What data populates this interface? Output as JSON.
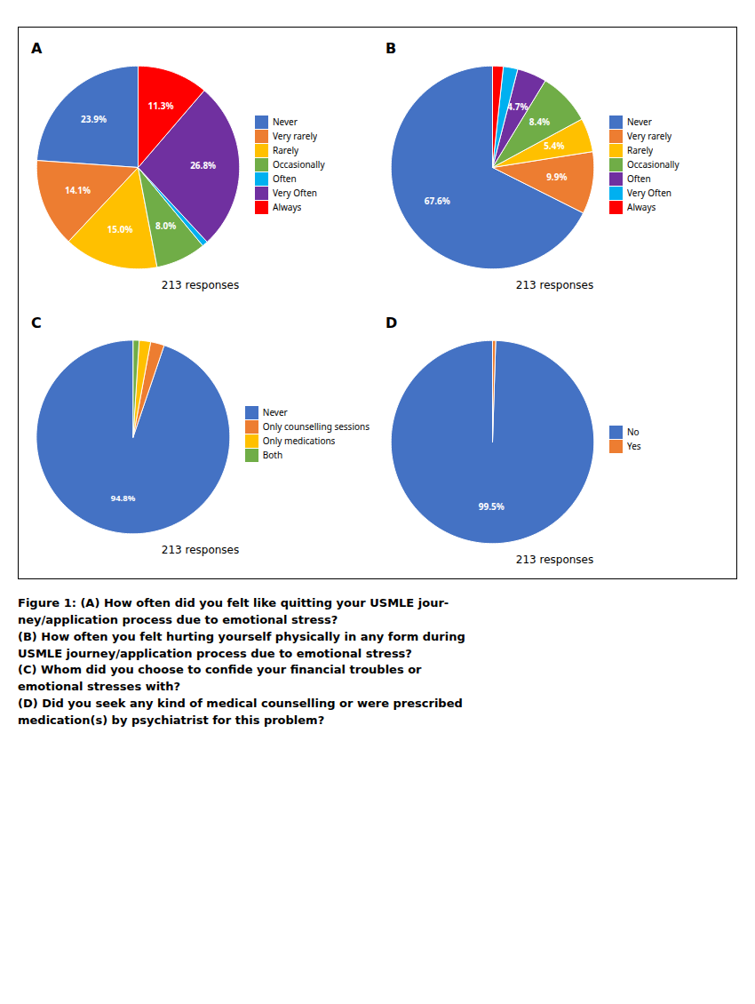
{
  "chart_data": [
    {
      "type": "pie",
      "title": "A",
      "categories": [
        "Never",
        "Very rarely",
        "Rarely",
        "Occasionally",
        "Often",
        "Very Often",
        "Always"
      ],
      "values": [
        23.9,
        14.1,
        15.0,
        8.0,
        0.9,
        26.8,
        11.3
      ],
      "value_labels": [
        "23.9%",
        "14.1%",
        "15.0%",
        "8.0%",
        null,
        "26.8%",
        "11.3%"
      ],
      "colors": [
        "#4472C4",
        "#ED7D31",
        "#FFC000",
        "#70AD47",
        "#00B0F0",
        "#7030A0",
        "#FF0000"
      ],
      "data_labels": true,
      "legend": "right",
      "annotations": [
        {
          "text": "213 responses"
        }
      ]
    },
    {
      "type": "pie",
      "title": "B",
      "categories": [
        "Never",
        "Very rarely",
        "Rarely",
        "Occasionally",
        "Often",
        "Very Often",
        "Always"
      ],
      "values": [
        67.6,
        9.9,
        5.4,
        8.4,
        4.7,
        2.3,
        1.7
      ],
      "value_labels": [
        "67.6%",
        "9.9%",
        "5.4%",
        "8.4%",
        "4.7%",
        null,
        null
      ],
      "colors": [
        "#4472C4",
        "#ED7D31",
        "#FFC000",
        "#70AD47",
        "#7030A0",
        "#00B0F0",
        "#FF0000"
      ],
      "data_labels": true,
      "legend": "right",
      "annotations": [
        {
          "text": "213 responses"
        }
      ]
    },
    {
      "type": "pie",
      "title": "C",
      "categories": [
        "Never",
        "Only counselling sessions",
        "Only medications",
        "Both"
      ],
      "values": [
        94.8,
        2.3,
        1.9,
        1.0
      ],
      "value_labels": [
        "94.8%",
        null,
        null,
        null
      ],
      "colors": [
        "#4472C4",
        "#ED7D31",
        "#FFC000",
        "#70AD47"
      ],
      "data_labels": true,
      "legend": "right",
      "annotations": [
        {
          "text": "213 responses"
        }
      ]
    },
    {
      "type": "pie",
      "title": "D",
      "categories": [
        "No",
        "Yes"
      ],
      "values": [
        99.5,
        0.5
      ],
      "value_labels": [
        "99.5%",
        null
      ],
      "colors": [
        "#4472C4",
        "#ED7D31"
      ],
      "data_labels": true,
      "legend": "right",
      "annotations": [
        {
          "text": "213 responses"
        }
      ]
    }
  ],
  "caption": [
    "Figure 1: (A) How often did you felt like quitting your USMLE jour-",
    "ney/application process due to emotional stress?",
    "(B) How often you felt hurting yourself physically in any form during",
    "USMLE journey/application process due to emotional stress?",
    "(C) Whom did you choose to confide your financial troubles or",
    "emotional stresses with?",
    "(D) Did you seek any kind of medical counselling or were prescribed",
    "medication(s) by psychiatrist for this problem?"
  ]
}
